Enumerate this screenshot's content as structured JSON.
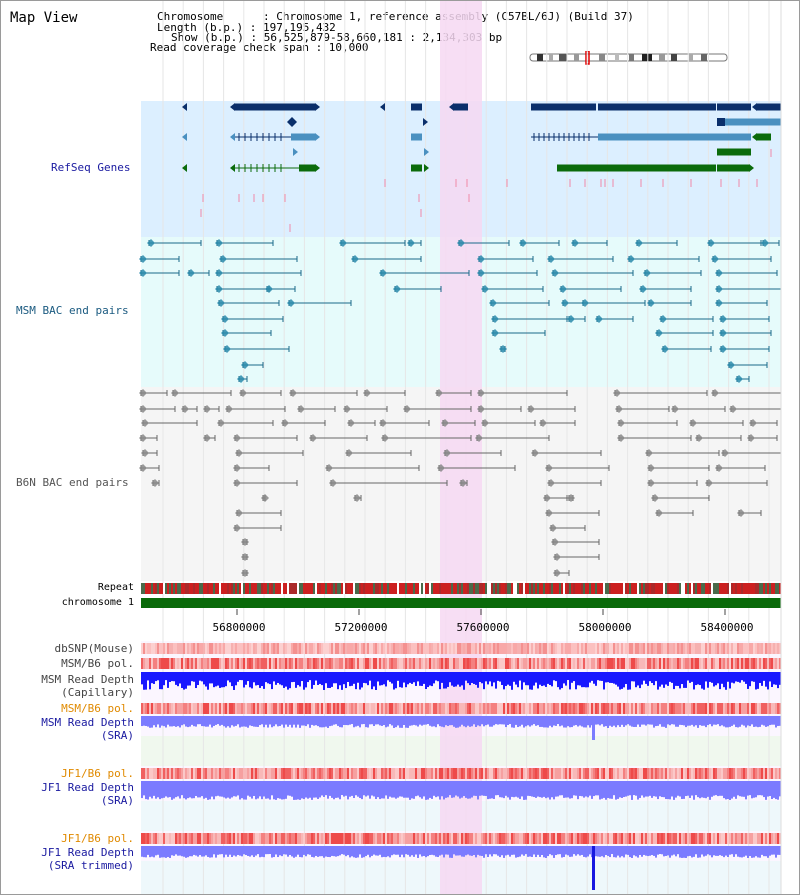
{
  "title": "Map View",
  "header": {
    "chromosome": "Chromosome      : Chromosome 1, reference assembly (C57BL/6J) (Build 37)",
    "length": "Length (b.p.) : 197,195,432",
    "show": "Show (b.p.) : 56,525,879-58,660,181 : 2,134,303 bp",
    "coverage": "Read coverage check span : 10,000"
  },
  "tracks": {
    "refseq": "RefSeq Genes",
    "msm_bac": "MSM BAC end pairs",
    "b6n_bac": "B6N BAC end pairs",
    "repeat": "Repeat",
    "chromosome": "chromosome 1",
    "dbsnp": "dbSNP(Mouse)",
    "msm_b6_pol_1": "MSM/B6 pol.",
    "msm_depth_cap_1": "MSM Read Depth",
    "msm_depth_cap_2": "(Capillary)",
    "msm_b6_pol_2": "MSM/B6 pol.",
    "msm_depth_sra_1": "MSM Read Depth",
    "msm_depth_sra_2": "(SRA)",
    "jf1_b6_pol_1": "JF1/B6 pol.",
    "jf1_depth_sra_1": "JF1 Read Depth",
    "jf1_depth_sra_2": "(SRA)",
    "jf1_b6_pol_2": "JF1/B6 pol.",
    "jf1_depth_trim_1": "JF1 Read Depth",
    "jf1_depth_trim_2": "(SRA trimmed)"
  },
  "axis_ticks": [
    "56800000",
    "57200000",
    "57600000",
    "58000000",
    "58400000"
  ],
  "colors": {
    "refseq_bg": "#dcefff",
    "msm_bg": "#e6fbfb",
    "b6n_bg": "#f5f5f5",
    "highlight": "#f6d8f2",
    "gene_dark": "#0a2f6b",
    "gene_mid": "#4a90c0",
    "gene_green": "#0b6b0b",
    "msm_line": "#1a6a8a",
    "b6n_line": "#666666",
    "depth_blue": "#1818ff",
    "depth_light": "#7b7bff",
    "label_blue": "#1a1aa0",
    "label_orange": "#e08a00"
  }
}
